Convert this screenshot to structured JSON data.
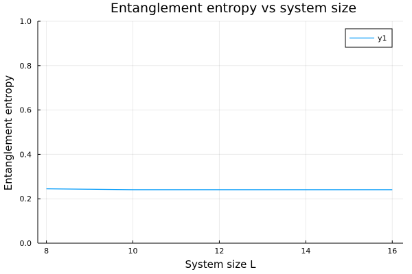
{
  "chart_data": {
    "type": "line",
    "title": "Entanglement entropy vs system size",
    "xlabel": "System size L",
    "ylabel": "Entanglement entropy",
    "xlim": [
      7.8,
      16.25
    ],
    "ylim": [
      0,
      1
    ],
    "xticks": [
      8,
      10,
      12,
      14,
      16
    ],
    "xtick_labels": [
      "8",
      "10",
      "12",
      "14",
      "16"
    ],
    "yticks": [
      0,
      0.2,
      0.4,
      0.6,
      0.8,
      1.0
    ],
    "ytick_labels": [
      "0.0",
      "0.2",
      "0.4",
      "0.6",
      "0.8",
      "1.0"
    ],
    "grid": true,
    "legend_position": "top-right",
    "series": [
      {
        "name": "y1",
        "color": "#009af9",
        "x": [
          8,
          9,
          10,
          11,
          12,
          13,
          14,
          15,
          16
        ],
        "y": [
          0.245,
          0.243,
          0.241,
          0.241,
          0.241,
          0.241,
          0.241,
          0.241,
          0.241
        ]
      }
    ]
  }
}
